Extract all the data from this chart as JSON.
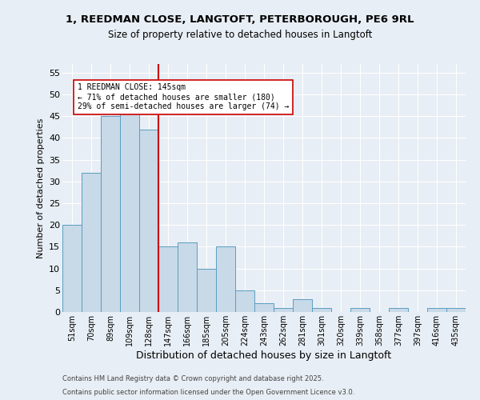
{
  "title_line1": "1, REEDMAN CLOSE, LANGTOFT, PETERBOROUGH, PE6 9RL",
  "title_line2": "Size of property relative to detached houses in Langtoft",
  "xlabel": "Distribution of detached houses by size in Langtoft",
  "ylabel": "Number of detached properties",
  "categories": [
    "51sqm",
    "70sqm",
    "89sqm",
    "109sqm",
    "128sqm",
    "147sqm",
    "166sqm",
    "185sqm",
    "205sqm",
    "224sqm",
    "243sqm",
    "262sqm",
    "281sqm",
    "301sqm",
    "320sqm",
    "339sqm",
    "358sqm",
    "377sqm",
    "397sqm",
    "416sqm",
    "435sqm"
  ],
  "values": [
    20,
    32,
    45,
    46,
    42,
    15,
    16,
    10,
    15,
    5,
    2,
    1,
    3,
    1,
    0,
    1,
    0,
    1,
    0,
    1,
    1
  ],
  "bar_color": "#c8d9e8",
  "bar_edge_color": "#5a9ec0",
  "vline_x": 4.5,
  "vline_color": "#cc0000",
  "annotation_text": "1 REEDMAN CLOSE: 145sqm\n← 71% of detached houses are smaller (180)\n29% of semi-detached houses are larger (74) →",
  "annotation_box_color": "#ffffff",
  "annotation_box_edge": "#cc0000",
  "ylim": [
    0,
    57
  ],
  "yticks": [
    0,
    5,
    10,
    15,
    20,
    25,
    30,
    35,
    40,
    45,
    50,
    55
  ],
  "footnote1": "Contains HM Land Registry data © Crown copyright and database right 2025.",
  "footnote2": "Contains public sector information licensed under the Open Government Licence v3.0.",
  "bg_color": "#e8eef5",
  "grid_color": "#ffffff"
}
